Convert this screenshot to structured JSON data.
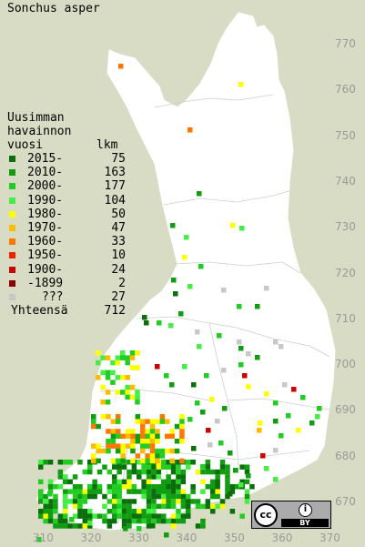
{
  "title": "Sonchus asper",
  "legend": {
    "heading": [
      "Uusimman",
      "havainnon",
      "vuosi"
    ],
    "count_heading": "lkm",
    "items": [
      {
        "label": "2015-",
        "count": "75",
        "color": "#0a6e0a"
      },
      {
        "label": "2010-",
        "count": "163",
        "color": "#119d11"
      },
      {
        "label": "2000-",
        "count": "177",
        "color": "#22cc22"
      },
      {
        "label": "1990-",
        "count": "104",
        "color": "#44ee44"
      },
      {
        "label": "1980-",
        "count": "50",
        "color": "#ffff00"
      },
      {
        "label": "1970-",
        "count": "47",
        "color": "#ffbb00"
      },
      {
        "label": "1960-",
        "count": "33",
        "color": "#ff7700"
      },
      {
        "label": "1950-",
        "count": "10",
        "color": "#ee2200"
      },
      {
        "label": "1900-",
        "count": "24",
        "color": "#cc0000"
      },
      {
        "label": "-1899",
        "count": "2",
        "color": "#880000"
      },
      {
        "label": "???",
        "count": "27",
        "color": "#c8c8c8"
      }
    ],
    "total_label": "Yhteensä",
    "total_count": "712"
  },
  "axes": {
    "y_labels": [
      "770",
      "760",
      "750",
      "740",
      "730",
      "720",
      "710",
      "700",
      "690",
      "680",
      "670"
    ],
    "x_labels": [
      "310",
      "320",
      "330",
      "340",
      "350",
      "360",
      "370"
    ]
  },
  "license": {
    "cc": "cc",
    "by": "BY",
    "person_icon": "person-icon"
  }
}
